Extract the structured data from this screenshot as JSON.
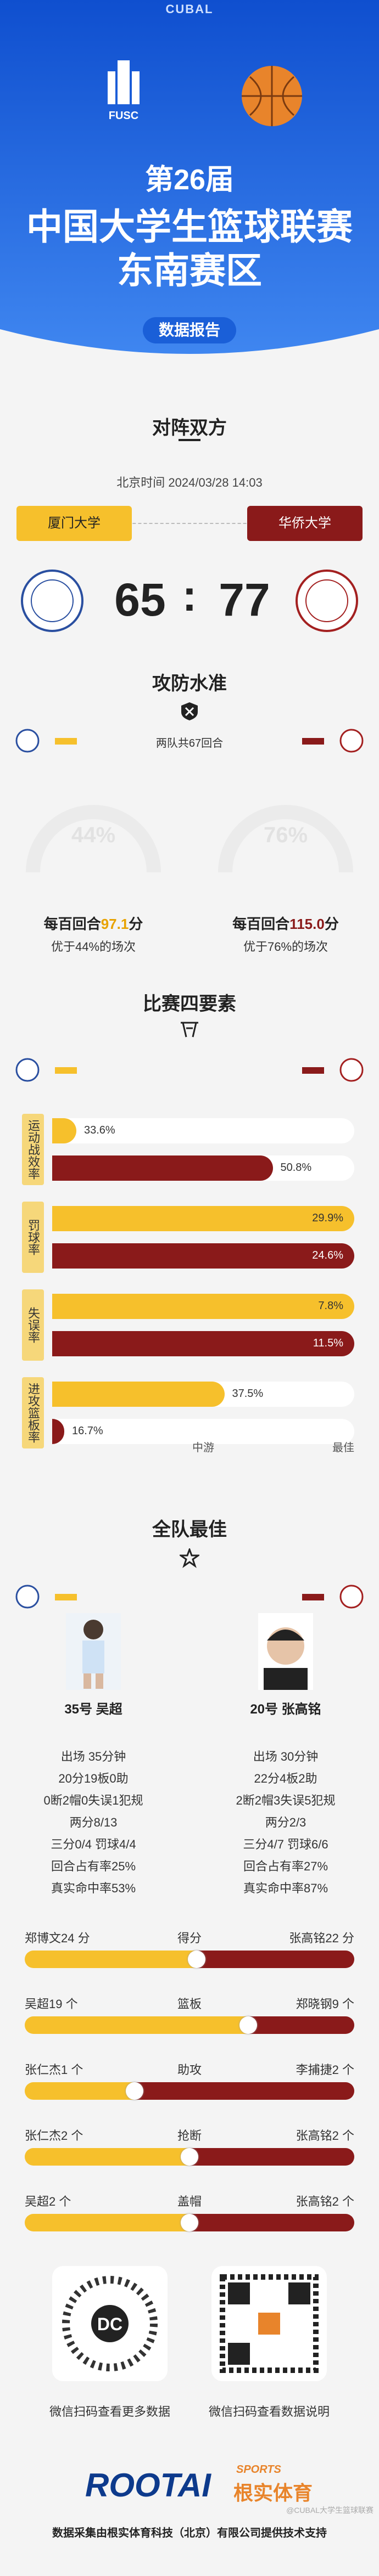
{
  "brand": "CUBAL",
  "header": {
    "left_logo": "FUSC",
    "edition": "第26届",
    "title": "中国大学生篮球联赛",
    "region": "东南赛区",
    "badge": "数据报告"
  },
  "matchup": {
    "title": "对阵双方",
    "time": "北京时间 2024/03/28 14:03",
    "home": "厦门大学",
    "away": "华侨大学",
    "home_score": "65",
    "separator": ":",
    "away_score": "77"
  },
  "offense": {
    "title": "攻防水准",
    "possessions": "两队共67回合",
    "home": {
      "gauge": "44%",
      "prefix": "每百回合",
      "value": "97.1",
      "unit": "分",
      "rank": "优于44%的场次"
    },
    "away": {
      "gauge": "76%",
      "prefix": "每百回合",
      "value": "115.0",
      "unit": "分",
      "rank": "优于76%的场次"
    }
  },
  "four_factors": {
    "title": "比赛四要素",
    "axis": [
      "中游",
      "最佳"
    ],
    "rows": [
      {
        "label": "运动战效率",
        "home": {
          "value": "33.6%",
          "level": 8
        },
        "away": {
          "value": "50.8%",
          "level": 73
        }
      },
      {
        "label": "罚球率",
        "home": {
          "value": "29.9%",
          "level": 100
        },
        "away": {
          "value": "24.6%",
          "level": 100
        }
      },
      {
        "label": "失误率",
        "home": {
          "value": "7.8%",
          "level": 100
        },
        "away": {
          "value": "11.5%",
          "level": 100
        }
      },
      {
        "label": "进攻篮板率",
        "home": {
          "value": "37.5%",
          "level": 57
        },
        "away": {
          "value": "16.7%",
          "level": 4
        }
      }
    ]
  },
  "best": {
    "title": "全队最佳",
    "home": {
      "name": "35号 吴超",
      "stats": [
        "出场 35分钟",
        "20分19板0助",
        "0断2帽0失误1犯规",
        "两分8/13",
        "三分0/4 罚球4/4",
        "回合占有率25%",
        "真实命中率53%"
      ]
    },
    "away": {
      "name": "20号 张高铭",
      "stats": [
        "出场 30分钟",
        "22分4板2助",
        "2断2帽3失误5犯规",
        "两分2/3",
        "三分4/7 罚球6/6",
        "回合占有率27%",
        "真实命中率87%"
      ]
    }
  },
  "leaders": [
    {
      "label": "得分",
      "home": {
        "text": "郑博文24 分",
        "value": 24
      },
      "away": {
        "text": "张高铭22 分",
        "value": 22
      }
    },
    {
      "label": "篮板",
      "home": {
        "text": "吴超19 个",
        "value": 19
      },
      "away": {
        "text": "郑晓钢9 个",
        "value": 9
      }
    },
    {
      "label": "助攻",
      "home": {
        "text": "张仁杰1 个",
        "value": 1
      },
      "away": {
        "text": "李捕捷2 个",
        "value": 2
      }
    },
    {
      "label": "抢断",
      "home": {
        "text": "张仁杰2 个",
        "value": 2
      },
      "away": {
        "text": "张高铭2 个",
        "value": 2
      }
    },
    {
      "label": "盖帽",
      "home": {
        "text": "吴超2 个",
        "value": 2
      },
      "away": {
        "text": "张高铭2 个",
        "value": 2
      }
    }
  ],
  "footer": {
    "qr_left": "微信扫码查看更多数据",
    "qr_right": "微信扫码查看数据说明",
    "logo": "ROOTAI",
    "logo_cn": "根实体育",
    "logo_sports": "SPORTS",
    "watermark": "@CUBAL大学生篮球联赛",
    "credit": "数据采集由根实体育科技（北京）有限公司提供技术支持"
  }
}
